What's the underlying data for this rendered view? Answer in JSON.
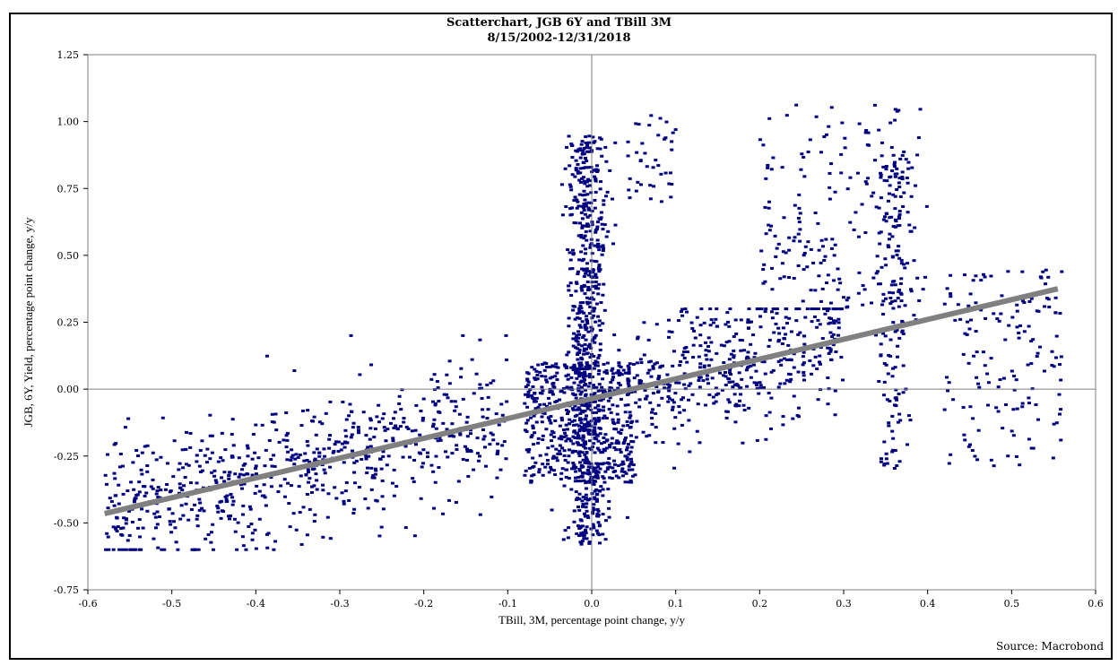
{
  "chart_data": {
    "type": "scatter",
    "title": "Scatterchart, JGB 6Y and TBill 3M",
    "subtitle": "8/15/2002-12/31/2018",
    "xlabel": "TBill, 3M, percentage point change, y/y",
    "ylabel": "JGB, 6Y, Yield, percentage point change, y/y",
    "source": "Source: Macrobond",
    "xlim": [
      -0.6,
      0.6
    ],
    "ylim": [
      -0.75,
      1.25
    ],
    "x_ticks": [
      -0.6,
      -0.5,
      -0.4,
      -0.3,
      -0.2,
      -0.1,
      0.0,
      0.1,
      0.2,
      0.3,
      0.4,
      0.5,
      0.6
    ],
    "x_tick_labels": [
      "-0.6",
      "-0.5",
      "-0.4",
      "-0.3",
      "-0.2",
      "-0.1",
      "0.0",
      "0.1",
      "0.2",
      "0.3",
      "0.4",
      "0.5",
      "0.6"
    ],
    "y_ticks": [
      -0.75,
      -0.5,
      -0.25,
      0.0,
      0.25,
      0.5,
      0.75,
      1.0,
      1.25
    ],
    "y_tick_labels": [
      "-0.75",
      "-0.50",
      "-0.25",
      "0.00",
      "0.25",
      "0.50",
      "0.75",
      "1.00",
      "1.25"
    ],
    "grid": false,
    "point_color": "#000080",
    "trend_color": "#808080",
    "axis_line_color": "#808080",
    "trend_line": {
      "x": [
        -0.58,
        0.555
      ],
      "y": [
        -0.465,
        0.375
      ]
    },
    "clusters": [
      {
        "name": "central-vertical",
        "x": [
          -0.03,
          0.02
        ],
        "y": [
          -0.58,
          0.95
        ],
        "n": 700
      },
      {
        "name": "central-dense",
        "x": [
          -0.08,
          0.05
        ],
        "y": [
          -0.35,
          0.1
        ],
        "n": 500
      },
      {
        "name": "left-band",
        "x": [
          -0.58,
          -0.1
        ],
        "y": [
          -0.6,
          0.2
        ],
        "n": 700
      },
      {
        "name": "mid-right-band",
        "x": [
          0.05,
          0.3
        ],
        "y": [
          -0.45,
          0.3
        ],
        "n": 450
      },
      {
        "name": "right-upper",
        "x": [
          0.2,
          0.4
        ],
        "y": [
          0.3,
          1.07
        ],
        "n": 200
      },
      {
        "name": "vertical-0.36",
        "x": [
          0.34,
          0.38
        ],
        "y": [
          -0.3,
          0.9
        ],
        "n": 160
      },
      {
        "name": "far-right",
        "x": [
          0.42,
          0.56
        ],
        "y": [
          -0.3,
          0.45
        ],
        "n": 150
      },
      {
        "name": "top-mid",
        "x": [
          0.04,
          0.1
        ],
        "y": [
          0.7,
          1.03
        ],
        "n": 40
      }
    ]
  }
}
